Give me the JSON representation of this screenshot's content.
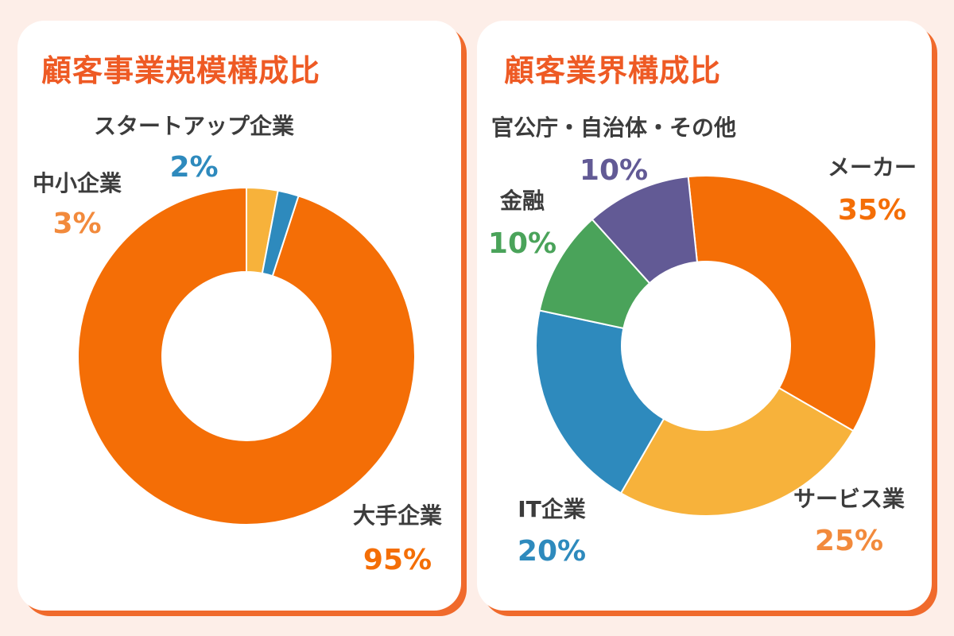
{
  "chart_data": [
    {
      "type": "pie",
      "title": "顧客事業規模構成比",
      "categories": [
        "大手企業",
        "中小企業",
        "スタートアップ企業"
      ],
      "values": [
        95,
        3,
        2
      ],
      "value_labels": [
        "95%",
        "3%",
        "2%"
      ],
      "colors": [
        "#f46e06",
        "#f7b23b",
        "#2e8abd"
      ],
      "label_colors": [
        "#f46e06",
        "#f28a3c",
        "#2e8abd"
      ],
      "donut": true
    },
    {
      "type": "pie",
      "title": "顧客業界構成比",
      "categories": [
        "メーカー",
        "サービス業",
        "IT企業",
        "金融",
        "官公庁・自治体・その他"
      ],
      "values": [
        35,
        25,
        20,
        10,
        10
      ],
      "value_labels": [
        "35%",
        "25%",
        "20%",
        "10%",
        "10%"
      ],
      "colors": [
        "#f46e06",
        "#f7b23b",
        "#2e8abd",
        "#4aa35a",
        "#625a95"
      ],
      "label_colors": [
        "#f46e06",
        "#f28a3c",
        "#2e8abd",
        "#4aa35a",
        "#625a95"
      ],
      "donut": true
    }
  ]
}
